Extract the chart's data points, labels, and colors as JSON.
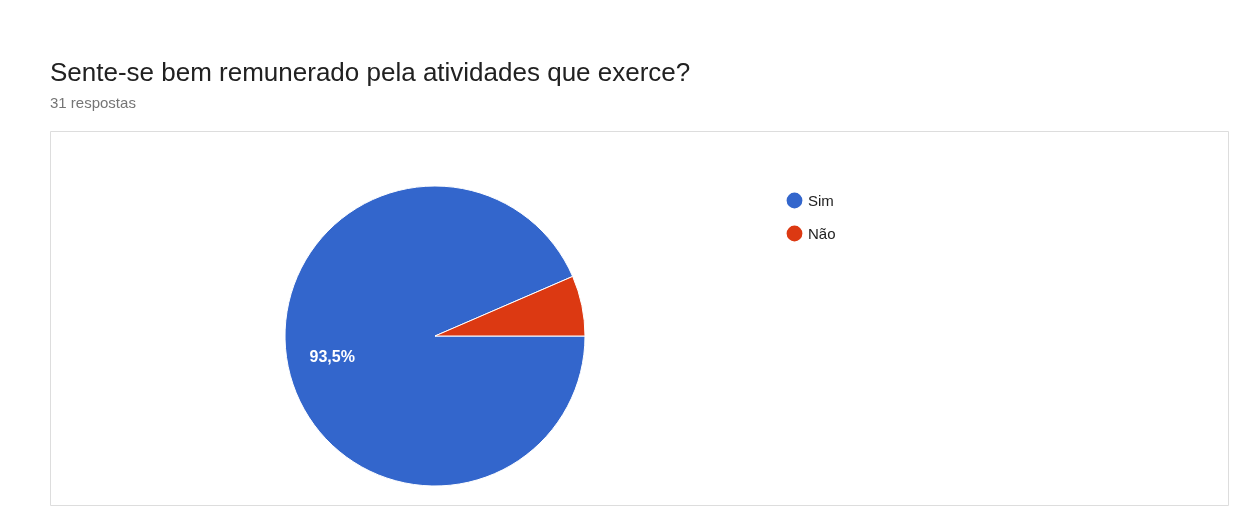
{
  "chart_data": {
    "type": "pie",
    "title": "Sente-se bem remunerado pela atividades que exerce?",
    "subtitle": "31 respostas",
    "categories": [
      "Sim",
      "Não"
    ],
    "values": [
      93.5,
      6.5
    ],
    "colors": [
      "#3366cc",
      "#dc3912"
    ],
    "value_labels": [
      "93,5%",
      null
    ],
    "legend": "right"
  }
}
